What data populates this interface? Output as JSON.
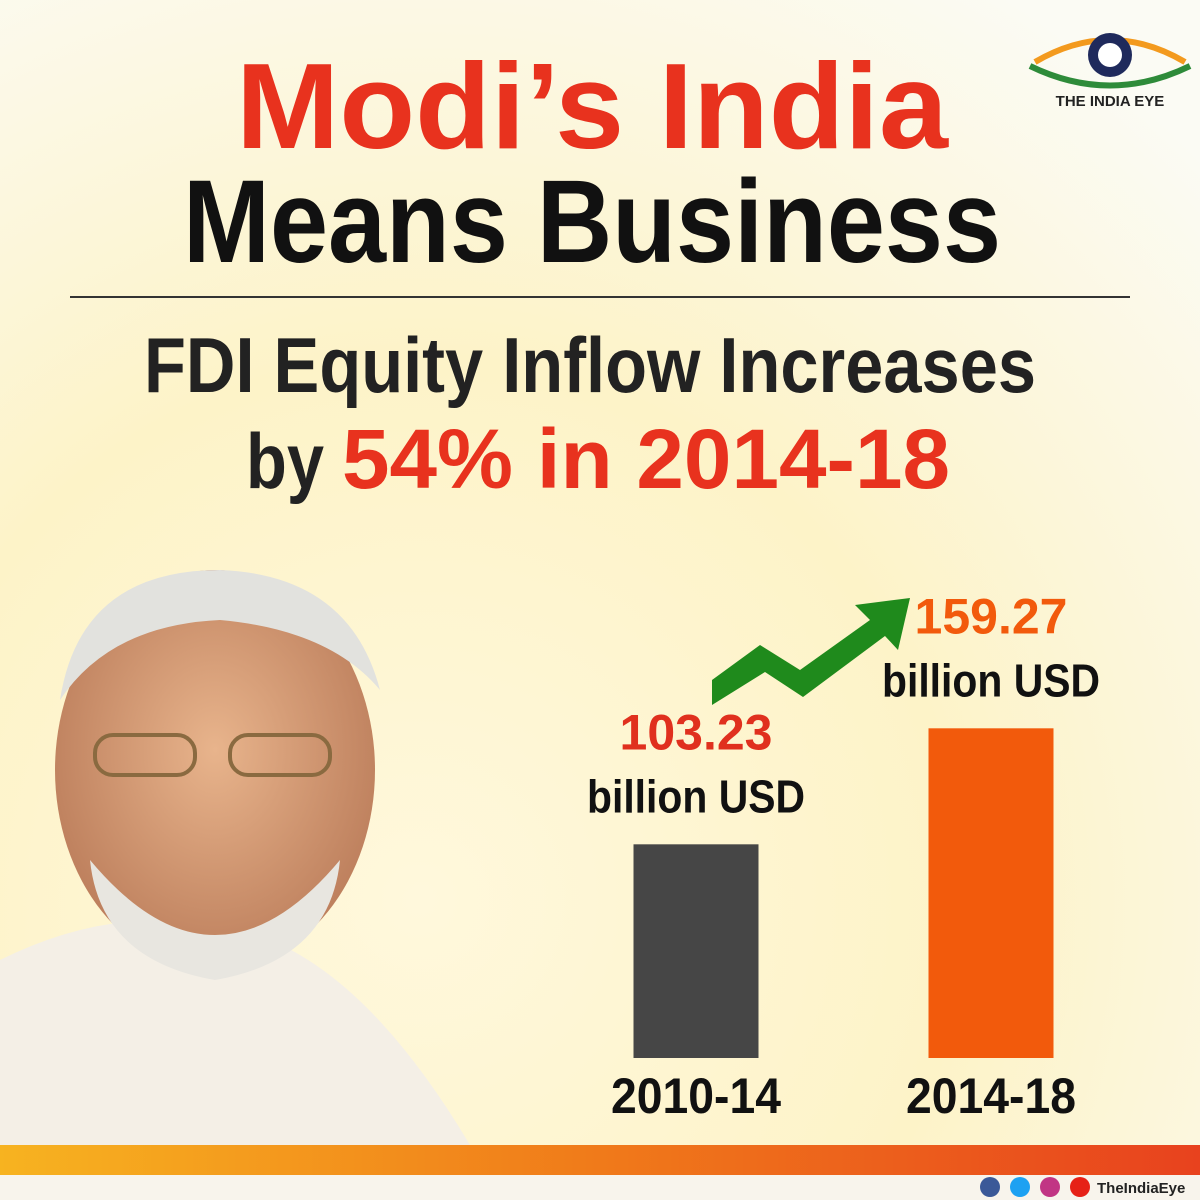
{
  "brand": "THE INDIA EYE",
  "footer_handle": "TheIndiaEye",
  "chart_data": {
    "type": "bar",
    "title": {
      "line1": "Modi’s India",
      "line2": "Means Business"
    },
    "subtitle": {
      "line1": "FDI Equity Inflow Increases",
      "line2_prefix": "by",
      "line2_highlight": "54% in 2014-18"
    },
    "categories": [
      "2010-14",
      "2014-18"
    ],
    "values": [
      103.23,
      159.27
    ],
    "unit_label": "billion USD",
    "colors": [
      "#464646",
      "#f25a0c"
    ],
    "label_colors": [
      "#e0301e",
      "#f25a0c"
    ]
  }
}
